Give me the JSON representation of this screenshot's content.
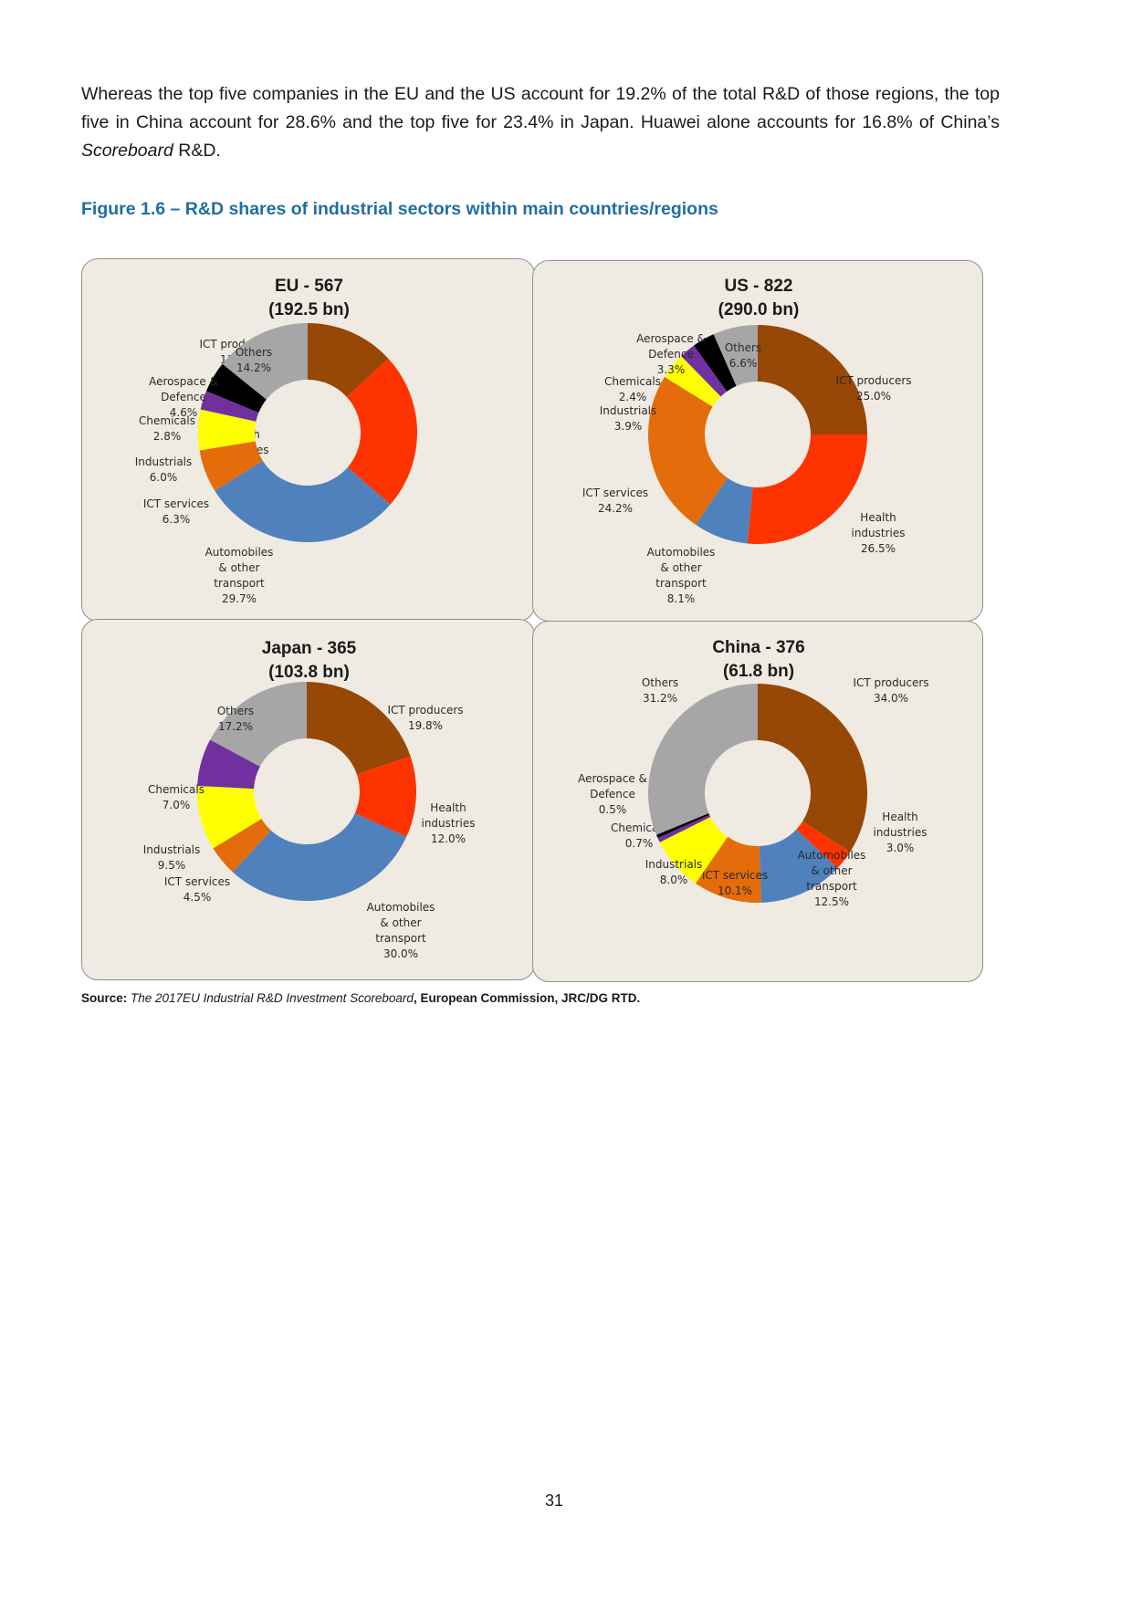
{
  "intro": {
    "before": "Whereas the top five companies in the EU and the US account for 19.2% of the total R&D of those regions, the top five in China account for 28.6% and the top five for 23.4% in Japan. Huawei alone accounts for 16.8% of China’s ",
    "emph": "Scoreboard",
    "after": " R&D."
  },
  "figure_title": "Figure 1.6 – R&D shares of industrial sectors within main countries/regions",
  "source": {
    "label": "Source: ",
    "title": "The 2017EU Industrial R&D Investment Scoreboard",
    "rest": ", European Commission, JRC/DG RTD."
  },
  "page_number": "31",
  "colors": {
    "ICT producers": "#974706",
    "Health industries": "#ff3300",
    "Automobiles & other transport": "#4f81bd",
    "ICT services": "#e46c0a",
    "Industrials": "#ffff00",
    "Chemicals": "#7030a0",
    "Aerospace & Defence": "#000000",
    "Others": "#a6a6a6"
  },
  "chart_data": [
    {
      "type": "pie",
      "title": [
        "EU - 567",
        "(192.5 bn)"
      ],
      "slices": [
        {
          "name": "ICT producers",
          "value": 13.2,
          "label": [
            "ICT producers",
            "13.2%"
          ]
        },
        {
          "name": "Health industries",
          "value": 23.2,
          "label": [
            "Health",
            "industries",
            "23.2%"
          ]
        },
        {
          "name": "Automobiles & other transport",
          "value": 29.7,
          "label": [
            "Automobiles",
            "& other",
            "transport",
            "29.7%"
          ]
        },
        {
          "name": "ICT services",
          "value": 6.3,
          "label": [
            "ICT services",
            "6.3%"
          ]
        },
        {
          "name": "Industrials",
          "value": 6.0,
          "label": [
            "Industrials",
            "6.0%"
          ]
        },
        {
          "name": "Chemicals",
          "value": 2.8,
          "label": [
            "Chemicals",
            "2.8%"
          ]
        },
        {
          "name": "Aerospace & Defence",
          "value": 4.6,
          "label": [
            "Aerospace &",
            "Defence",
            "4.6%"
          ]
        },
        {
          "name": "Others",
          "value": 14.2,
          "label": [
            "Others",
            "14.2%"
          ]
        }
      ]
    },
    {
      "type": "pie",
      "title": [
        "US  - 822",
        "(290.0 bn)"
      ],
      "slices": [
        {
          "name": "ICT producers",
          "value": 25.0,
          "label": [
            "ICT producers",
            "25.0%"
          ]
        },
        {
          "name": "Health industries",
          "value": 26.5,
          "label": [
            "Health",
            "industries",
            "26.5%"
          ]
        },
        {
          "name": "Automobiles & other transport",
          "value": 8.1,
          "label": [
            "Automobiles",
            "& other",
            "transport",
            "8.1%"
          ]
        },
        {
          "name": "ICT services",
          "value": 24.2,
          "label": [
            "ICT services",
            "24.2%"
          ]
        },
        {
          "name": "Industrials",
          "value": 3.9,
          "label": [
            "Industrials",
            "3.9%"
          ]
        },
        {
          "name": "Chemicals",
          "value": 2.4,
          "label": [
            "Chemicals",
            "2.4%"
          ]
        },
        {
          "name": "Aerospace & Defence",
          "value": 3.3,
          "label": [
            "Aerospace &",
            "Defence",
            "3.3%"
          ]
        },
        {
          "name": "Others",
          "value": 6.6,
          "label": [
            "Others",
            "6.6%"
          ]
        }
      ]
    },
    {
      "type": "pie",
      "title": [
        "Japan - 365",
        "(103.8 bn)"
      ],
      "slices": [
        {
          "name": "ICT producers",
          "value": 19.8,
          "label": [
            "ICT producers",
            "19.8%"
          ]
        },
        {
          "name": "Health industries",
          "value": 12.0,
          "label": [
            "Health",
            "industries",
            "12.0%"
          ]
        },
        {
          "name": "Automobiles & other transport",
          "value": 30.0,
          "label": [
            "Automobiles",
            "& other",
            "transport",
            "30.0%"
          ]
        },
        {
          "name": "ICT services",
          "value": 4.5,
          "label": [
            "ICT services",
            "4.5%"
          ]
        },
        {
          "name": "Industrials",
          "value": 9.5,
          "label": [
            "Industrials",
            "9.5%"
          ]
        },
        {
          "name": "Chemicals",
          "value": 7.0,
          "label": [
            "Chemicals",
            "7.0%"
          ]
        },
        {
          "name": "Others",
          "value": 17.2,
          "label": [
            "Others",
            "17.2%"
          ]
        }
      ]
    },
    {
      "type": "pie",
      "title": [
        "China  - 376",
        "(61.8 bn)"
      ],
      "slices": [
        {
          "name": "ICT producers",
          "value": 34.0,
          "label": [
            "ICT producers",
            "34.0%"
          ]
        },
        {
          "name": "Health industries",
          "value": 3.0,
          "label": [
            "Health",
            "industries",
            "3.0%"
          ]
        },
        {
          "name": "Automobiles & other transport",
          "value": 12.5,
          "label": [
            "Automobiles",
            "& other",
            "transport",
            "12.5%"
          ]
        },
        {
          "name": "ICT services",
          "value": 10.1,
          "label": [
            "ICT services",
            "10.1%"
          ]
        },
        {
          "name": "Industrials",
          "value": 8.0,
          "label": [
            "Industrials",
            "8.0%"
          ]
        },
        {
          "name": "Chemicals",
          "value": 0.7,
          "label": [
            "Chemicals",
            "0.7%"
          ]
        },
        {
          "name": "Aerospace & Defence",
          "value": 0.5,
          "label": [
            "Aerospace &",
            "Defence",
            "0.5%"
          ]
        },
        {
          "name": "Others",
          "value": 31.2,
          "label": [
            "Others",
            "31.2%"
          ]
        }
      ]
    }
  ]
}
